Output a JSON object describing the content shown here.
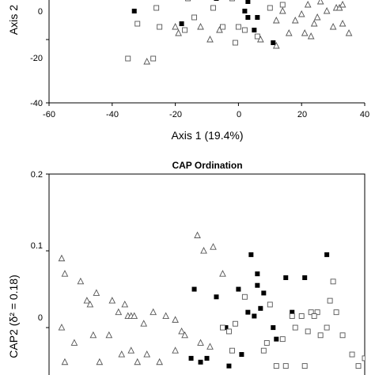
{
  "chart_data": [
    {
      "type": "scatter",
      "title": "",
      "xlabel": "Axis 1 (19.4%)",
      "ylabel": "Axis 2",
      "xlim": [
        -60,
        40
      ],
      "ylim": [
        -40,
        10
      ],
      "xticks": [
        "-60",
        "-40",
        "-20",
        "0",
        "20",
        "40"
      ],
      "yticks": [
        "0",
        "-20",
        "-40"
      ],
      "grid": false,
      "series": [
        {
          "marker": "filled-square",
          "color": "#000000",
          "x": [
            -25,
            -17,
            -13,
            -33,
            -11,
            -7,
            3,
            2,
            3,
            5,
            -18,
            11,
            6,
            -23
          ],
          "y": [
            12,
            2,
            3,
            -11,
            -3,
            -7,
            -8,
            -11,
            -13,
            -17,
            -15,
            -21,
            -13,
            -4
          ]
        },
        {
          "marker": "open-square",
          "color": "#555555",
          "x": [
            -31,
            -24,
            -19,
            -17,
            -16,
            -10,
            -5,
            -2,
            -9,
            -13,
            -35,
            -32,
            -26,
            -17,
            -25,
            -14,
            -5,
            -1,
            6,
            10,
            14,
            17,
            22,
            -27,
            0,
            2,
            -8
          ],
          "y": [
            -5,
            1,
            1,
            5,
            -7,
            -5,
            0,
            -7,
            5,
            -5,
            -26,
            -15,
            -10,
            -17,
            -16,
            -13,
            -16,
            -21,
            -19,
            -10,
            -9,
            0,
            -5,
            -26,
            -16,
            -17,
            -10
          ]
        },
        {
          "marker": "open-triangle",
          "color": "#555555",
          "x": [
            20,
            26,
            31,
            27,
            33,
            24,
            29,
            35,
            22,
            28,
            30,
            32,
            25,
            33,
            21,
            18,
            23,
            27,
            12,
            14,
            16,
            12,
            19,
            24,
            25,
            29,
            32,
            -20,
            -19,
            -12,
            -29,
            -6,
            -9,
            7
          ],
          "y": [
            -12,
            -8,
            -10,
            -3,
            -15,
            -15,
            -5,
            -18,
            -9,
            -11,
            -16,
            -10,
            -13,
            -9,
            -18,
            -14,
            -19,
            -6,
            -14,
            -11,
            -18,
            -22,
            1,
            -3,
            3,
            5,
            1,
            -16,
            -18,
            -16,
            -27,
            -17,
            -20,
            -20
          ]
        }
      ]
    },
    {
      "type": "scatter",
      "title": "CAP Ordination",
      "xlabel": "",
      "ylabel": "CAP2 (δ² = 0.18)",
      "xlim": [
        -60,
        40
      ],
      "ylim": [
        -0.07,
        0.2
      ],
      "yticks": [
        "0.2",
        "0.1",
        "0"
      ],
      "grid": false,
      "series": [
        {
          "marker": "filled-square",
          "color": "#000000",
          "x": [
            4,
            6,
            0,
            8,
            15,
            -14,
            -7,
            -15,
            6,
            7,
            11,
            17,
            3,
            5,
            -4,
            1,
            28,
            21,
            -10,
            -12,
            -3,
            12
          ],
          "y": 0,
          "y_values": [
            0.095,
            0.07,
            0.05,
            0.045,
            0.065,
            0.05,
            0.04,
            -0.04,
            0.055,
            0.025,
            0.0,
            0.02,
            0.02,
            0.015,
            0.0,
            -0.035,
            0.095,
            0.065,
            -0.04,
            -0.045,
            -0.05,
            -0.015
          ]
        },
        {
          "marker": "open-square",
          "color": "#555555",
          "x": [
            10,
            20,
            25,
            28,
            29,
            23,
            31,
            26,
            17,
            2,
            -5,
            -3,
            -1,
            9,
            14,
            8,
            12,
            18,
            22,
            24,
            30,
            33,
            36,
            38,
            40,
            27,
            21,
            15,
            -2
          ],
          "y_values": [
            0.03,
            0.015,
            0.02,
            0.0,
            0.035,
            0.02,
            0.02,
            -0.01,
            0.015,
            0.04,
            0.0,
            -0.005,
            0.005,
            -0.02,
            -0.015,
            -0.03,
            -0.05,
            0.0,
            -0.005,
            0.015,
            0.06,
            -0.01,
            -0.035,
            -0.05,
            -0.04,
            -0.07,
            -0.05,
            -0.05,
            -0.03
          ]
        },
        {
          "marker": "open-triangle",
          "color": "#555555",
          "x": [
            -56,
            -55,
            -50,
            -48,
            -47,
            -45,
            -40,
            -38,
            -36,
            -35,
            -34,
            -33,
            -30,
            -27,
            -23,
            -20,
            -18,
            -17,
            -13,
            -11,
            -8,
            -5,
            -46,
            -52,
            -56,
            -41,
            -34,
            -37,
            -29,
            -25,
            -20,
            -32,
            -55,
            -44,
            -12,
            -9
          ],
          "y_values": [
            0.09,
            0.07,
            0.06,
            0.035,
            0.03,
            0.045,
            0.035,
            0.02,
            0.03,
            0.015,
            0.015,
            0.015,
            0.005,
            0.02,
            0.015,
            0.01,
            -0.005,
            -0.01,
            0.12,
            0.1,
            0.105,
            0.07,
            -0.01,
            -0.02,
            0.0,
            -0.01,
            -0.03,
            -0.035,
            -0.035,
            -0.045,
            -0.03,
            -0.045,
            -0.045,
            -0.045,
            -0.02,
            -0.025
          ]
        }
      ]
    }
  ]
}
